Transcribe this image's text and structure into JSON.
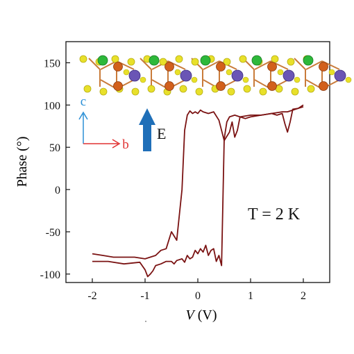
{
  "chart_data": {
    "type": "line",
    "xlabel": {
      "italic": "V",
      "rest": " (V)"
    },
    "ylabel": "Phase (°)",
    "xlim": [
      -2.5,
      2.5
    ],
    "ylim": [
      -110,
      175
    ],
    "xticks": [
      -2,
      -1,
      0,
      1,
      2
    ],
    "xtick_labels": [
      "-2",
      "-1",
      "0",
      "1",
      "2"
    ],
    "yticks": [
      -100,
      -50,
      0,
      50,
      100,
      150
    ],
    "ytick_labels": [
      "-100",
      "-50",
      "0",
      "50",
      "100",
      "150"
    ],
    "grid": false,
    "line_color": "#7a1212",
    "series": [
      {
        "x": [
          -2.0,
          -1.7,
          -1.4,
          -1.1,
          -1.0,
          -0.95,
          -0.9,
          -0.85,
          -0.8,
          -0.7,
          -0.6,
          -0.5,
          -0.45,
          -0.4,
          -0.3,
          -0.25,
          -0.2,
          -0.15,
          -0.1,
          -0.05,
          0.0,
          0.05,
          0.1,
          0.15,
          0.2,
          0.25,
          0.3,
          0.35,
          0.4,
          0.45,
          0.5,
          0.55,
          0.6,
          0.7,
          0.8,
          0.9,
          1.0,
          1.2,
          1.4,
          1.6,
          1.7,
          1.8,
          1.9,
          2.0
        ],
        "y": [
          -85,
          -85,
          -88,
          -86,
          -95,
          -103,
          -100,
          -96,
          -90,
          -88,
          -85,
          -85,
          -88,
          -84,
          -82,
          -86,
          -78,
          -82,
          -80,
          -72,
          -76,
          -70,
          -74,
          -66,
          -78,
          -72,
          -70,
          -85,
          -78,
          -90,
          60,
          80,
          86,
          88,
          86,
          87,
          88,
          88,
          90,
          92,
          92,
          94,
          96,
          100
        ]
      },
      {
        "x": [
          2.0,
          1.9,
          1.8,
          1.75,
          1.7,
          1.65,
          1.6,
          1.5,
          1.4,
          1.2,
          1.0,
          0.9,
          0.8,
          0.75,
          0.7,
          0.65,
          0.6,
          0.5,
          0.4,
          0.3,
          0.2,
          0.1,
          0.05,
          0.0,
          -0.05,
          -0.1,
          -0.15,
          -0.2,
          -0.25,
          -0.3,
          -0.4,
          -0.5,
          -0.6,
          -0.7,
          -0.8,
          -1.0,
          -1.2,
          -1.4,
          -1.6,
          -1.8,
          -2.0
        ],
        "y": [
          98,
          96,
          95,
          80,
          68,
          78,
          90,
          88,
          90,
          88,
          86,
          84,
          86,
          70,
          62,
          80,
          68,
          58,
          82,
          92,
          90,
          92,
          94,
          90,
          92,
          90,
          93,
          88,
          70,
          0,
          -60,
          -50,
          -70,
          -72,
          -78,
          -82,
          -80,
          -80,
          -80,
          -78,
          -76
        ]
      }
    ],
    "annotations": {
      "temperature": "T = 2 K",
      "axis_c": "c",
      "axis_b": "b",
      "field_label": "E"
    }
  },
  "colors": {
    "c_axis": "#2a8fd6",
    "b_axis": "#e03030",
    "field_arrow": "#1f6fb8",
    "atom_yellow": "#e8e02a",
    "atom_green": "#2db83a",
    "atom_orange": "#d2601c",
    "atom_purple": "#6a55b5"
  }
}
